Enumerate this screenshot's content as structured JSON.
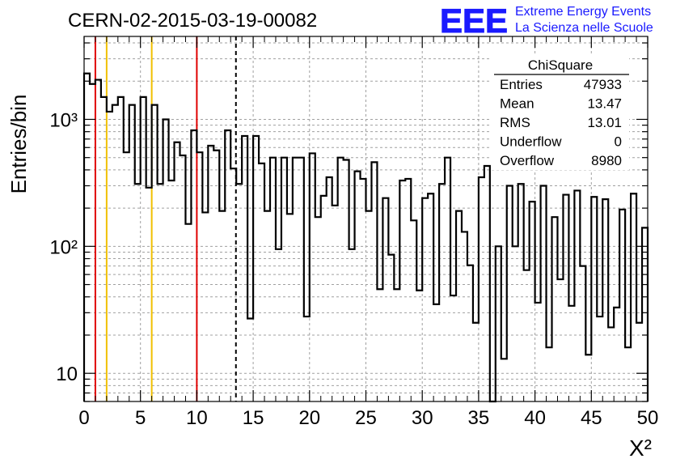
{
  "chart_data": {
    "type": "histogram",
    "title": "CERN-02-2015-03-19-00082",
    "xlabel": "X²",
    "ylabel": "Entries/bin",
    "xlim": [
      0,
      50
    ],
    "ylim": [
      6,
      4500
    ],
    "y_scale": "log",
    "grid": true,
    "bin_width": 0.5,
    "x_ticks": [
      0,
      5,
      10,
      15,
      20,
      25,
      30,
      35,
      40,
      45,
      50
    ],
    "y_ticks": [
      {
        "value": 10,
        "label": "10"
      },
      {
        "value": 100,
        "label": "10²"
      },
      {
        "value": 1000,
        "label": "10³"
      }
    ],
    "values": [
      2300,
      1900,
      2050,
      1500,
      1150,
      1300,
      1500,
      550,
      1300,
      310,
      1500,
      290,
      1300,
      310,
      1000,
      330,
      660,
      520,
      150,
      820,
      550,
      185,
      620,
      570,
      190,
      820,
      410,
      310,
      740,
      27,
      740,
      450,
      190,
      500,
      95,
      500,
      180,
      500,
      500,
      28,
      540,
      170,
      250,
      350,
      210,
      500,
      480,
      95,
      390,
      340,
      190,
      460,
      46,
      240,
      86,
      46,
      330,
      340,
      160,
      45,
      240,
      260,
      35,
      310,
      500,
      41,
      190,
      130,
      71,
      25,
      350,
      430,
      5,
      100,
      13,
      300,
      100,
      310,
      65,
      225,
      36,
      300,
      16,
      170,
      55,
      255,
      34,
      275,
      70,
      14,
      245,
      28,
      235,
      23,
      33,
      195,
      16,
      260,
      25,
      140
    ],
    "vertical_lines": [
      {
        "x": 1,
        "color": "#e00000",
        "style": "solid"
      },
      {
        "x": 2,
        "color": "#f0c000",
        "style": "solid"
      },
      {
        "x": 6,
        "color": "#f0c000",
        "style": "solid"
      },
      {
        "x": 10,
        "color": "#e00000",
        "style": "solid"
      },
      {
        "x": 13.47,
        "color": "#000000",
        "style": "dashed"
      }
    ],
    "stats_box": {
      "title": "ChiSquare",
      "rows": [
        {
          "label": "Entries",
          "value": "47933"
        },
        {
          "label": "Mean",
          "value": "13.47"
        },
        {
          "label": "RMS",
          "value": "13.01"
        },
        {
          "label": "Underflow",
          "value": "0"
        },
        {
          "label": "Overflow",
          "value": "8980"
        }
      ]
    }
  },
  "logo": {
    "mark": "EEE",
    "line1": "Extreme Energy Events",
    "line2": "La Scienza nelle Scuole",
    "color": "#1a1aff"
  }
}
